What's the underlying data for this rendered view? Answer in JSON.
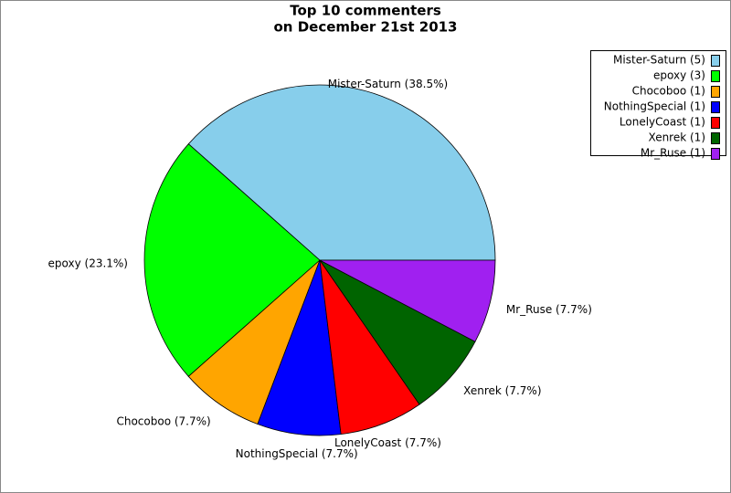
{
  "chart_data": {
    "type": "pie",
    "title": "Top 10 commenters",
    "subtitle": "on December 21st 2013",
    "categories": [
      "Mister-Saturn (5)",
      "epoxy (3)",
      "Chocoboo (1)",
      "NothingSpecial (1)",
      "LonelyCoast (1)",
      "Xenrek (1)",
      "Mr_Ruse (1)"
    ],
    "values": [
      38.5,
      23.1,
      7.7,
      7.7,
      7.7,
      7.7,
      7.7
    ],
    "value_labels": [
      "Mister-Saturn (38.5%)",
      "epoxy (23.1%)",
      "Chocoboo (7.7%)",
      "NothingSpecial (7.7%)",
      "LonelyCoast (7.7%)",
      "Xenrek (7.7%)",
      "Mr_Ruse (7.7%)"
    ],
    "colors": [
      "#87ceeb",
      "#00ff00",
      "#ffa500",
      "#0000ff",
      "#ff0000",
      "#006400",
      "#a020f0"
    ],
    "legend": "top-right"
  }
}
